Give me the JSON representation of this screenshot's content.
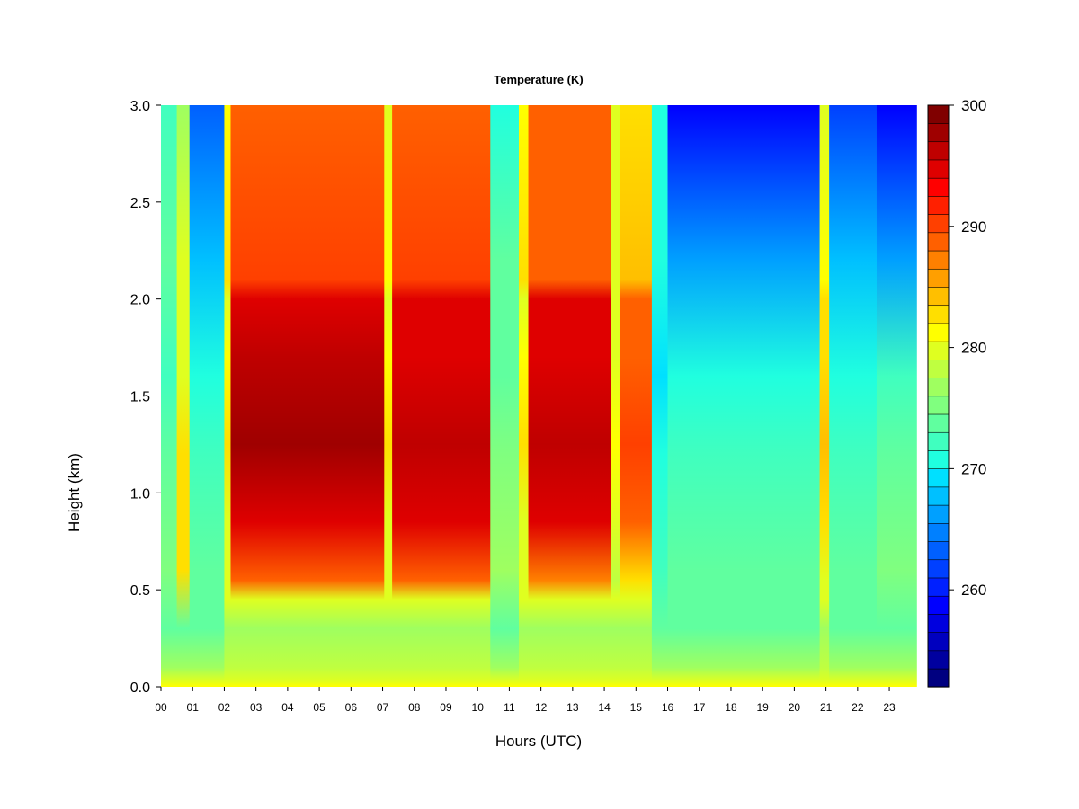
{
  "chart_data": {
    "type": "heatmap",
    "title": "Temperature (K)",
    "xlabel": "Hours (UTC)",
    "ylabel": "Height (km)",
    "x_ticks": [
      "00",
      "01",
      "02",
      "03",
      "04",
      "05",
      "06",
      "07",
      "08",
      "09",
      "10",
      "11",
      "12",
      "13",
      "14",
      "15",
      "16",
      "17",
      "18",
      "19",
      "20",
      "21",
      "22",
      "23"
    ],
    "y_ticks": [
      "0.0",
      "0.5",
      "1.0",
      "1.5",
      "2.0",
      "2.5",
      "3.0"
    ],
    "xlim": [
      0,
      23.85
    ],
    "ylim": [
      0,
      3.0
    ],
    "colorbar": {
      "ticks": [
        "260",
        "270",
        "280",
        "290",
        "300"
      ],
      "range": [
        252,
        300
      ],
      "levels": 24,
      "colors": [
        "#000080",
        "#00009f",
        "#0000bf",
        "#0000df",
        "#0000ff",
        "#0020ff",
        "#0040ff",
        "#0060ff",
        "#0080ff",
        "#00a0ff",
        "#00c0ff",
        "#00e0ff",
        "#20ffdf",
        "#40ffbf",
        "#60ff9f",
        "#80ff7f",
        "#9fff60",
        "#bfff40",
        "#dfff20",
        "#ffff00",
        "#ffdf00",
        "#ffbf00",
        "#ff9f00",
        "#ff8000",
        "#ff6000",
        "#ff4000",
        "#ff2000",
        "#ff0000",
        "#df0000",
        "#bf0000",
        "#9f0000",
        "#800000"
      ]
    },
    "columns": [
      {
        "from": 0.0,
        "to": 0.5,
        "top": 272,
        "peak": 275
      },
      {
        "from": 0.5,
        "to": 0.9,
        "top": 277,
        "peak": 283
      },
      {
        "from": 0.9,
        "to": 2.0,
        "top": 263,
        "peak": 273
      },
      {
        "from": 2.0,
        "to": 2.2,
        "top": 281,
        "peak": 282
      },
      {
        "from": 2.2,
        "to": 7.05,
        "top": 289,
        "peak": 297
      },
      {
        "from": 7.05,
        "to": 7.3,
        "top": 280,
        "peak": 282
      },
      {
        "from": 7.3,
        "to": 10.4,
        "top": 289,
        "peak": 296
      },
      {
        "from": 10.4,
        "to": 11.3,
        "top": 271,
        "peak": 276
      },
      {
        "from": 11.3,
        "to": 11.6,
        "top": 281,
        "peak": 282
      },
      {
        "from": 11.6,
        "to": 14.2,
        "top": 288,
        "peak": 296
      },
      {
        "from": 14.2,
        "to": 14.5,
        "top": 279,
        "peak": 281
      },
      {
        "from": 14.5,
        "to": 15.5,
        "top": 283,
        "peak": 290
      },
      {
        "from": 15.5,
        "to": 16.0,
        "top": 270,
        "peak": 272
      },
      {
        "from": 16.0,
        "to": 20.8,
        "top": 259,
        "peak": 273
      },
      {
        "from": 20.8,
        "to": 21.1,
        "top": 280,
        "peak": 284
      },
      {
        "from": 21.1,
        "to": 21.6,
        "top": 262,
        "peak": 273
      },
      {
        "from": 21.6,
        "to": 22.6,
        "top": 262,
        "peak": 273
      },
      {
        "from": 22.6,
        "to": 23.85,
        "top": 258,
        "peak": 275
      }
    ]
  }
}
